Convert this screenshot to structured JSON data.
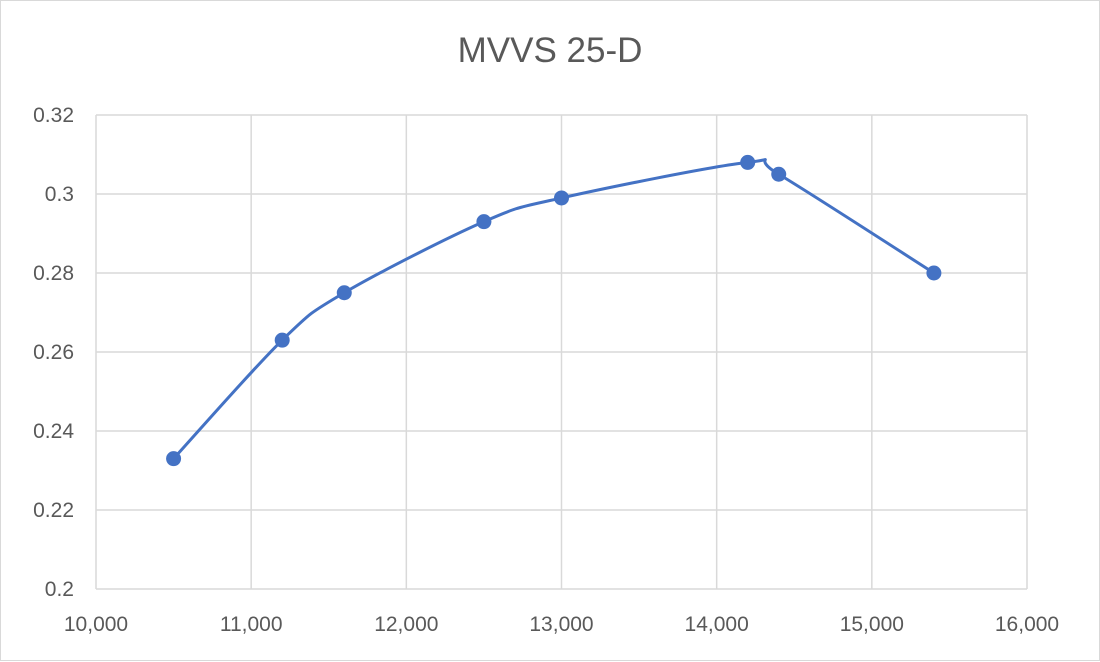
{
  "chart_data": {
    "type": "line",
    "title": "MVVS 25-D",
    "xlabel": "",
    "ylabel": "",
    "xlim": [
      10000,
      16000
    ],
    "ylim": [
      0.2,
      0.32
    ],
    "x_ticks": [
      10000,
      11000,
      12000,
      13000,
      14000,
      15000,
      16000
    ],
    "x_tick_labels": [
      "10,000",
      "11,000",
      "12,000",
      "13,000",
      "14,000",
      "15,000",
      "16,000"
    ],
    "y_ticks": [
      0.2,
      0.22,
      0.24,
      0.26,
      0.28,
      0.3,
      0.32
    ],
    "y_tick_labels": [
      "0.2",
      "0.22",
      "0.24",
      "0.26",
      "0.28",
      "0.3",
      "0.32"
    ],
    "grid": true,
    "smooth": true,
    "series": [
      {
        "color": "#4472c4",
        "x": [
          10500,
          11200,
          11600,
          12500,
          13000,
          14200,
          14400,
          15400
        ],
        "y": [
          0.233,
          0.263,
          0.275,
          0.293,
          0.299,
          0.308,
          0.305,
          0.28
        ]
      }
    ]
  }
}
